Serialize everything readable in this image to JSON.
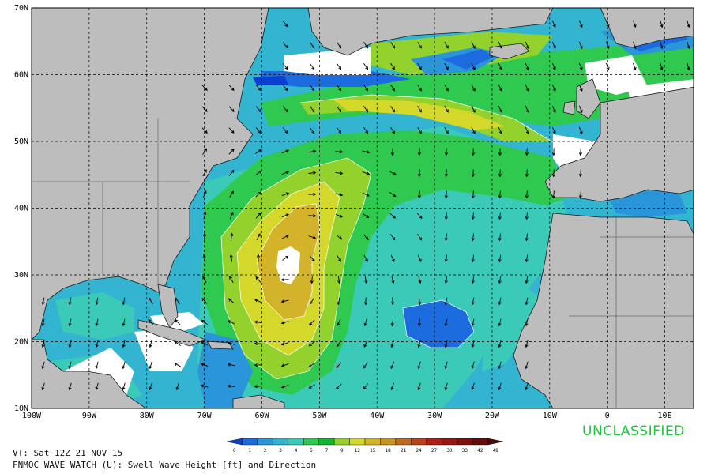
{
  "map": {
    "lat_labels": [
      "70N",
      "60N",
      "50N",
      "40N",
      "30N",
      "20N",
      "10N"
    ],
    "lon_labels": [
      "100W",
      "90W",
      "80W",
      "70W",
      "60W",
      "50W",
      "40W",
      "30W",
      "20W",
      "10W",
      "0",
      "10E"
    ],
    "extent": {
      "lon_min": -100,
      "lon_max": 15,
      "lat_min": 10,
      "lat_max": 70
    },
    "colors": {
      "land": "#bdbdbd",
      "nodata": "#ffffff",
      "grid": "#000000",
      "arrow": "#000000"
    }
  },
  "colorbar": {
    "ticks": [
      "0",
      "1",
      "2",
      "3",
      "4",
      "5",
      "7",
      "9",
      "12",
      "15",
      "18",
      "21",
      "24",
      "27",
      "30",
      "33",
      "42",
      "48"
    ],
    "colors": [
      "#0a3fd0",
      "#1c6ce0",
      "#2a95d8",
      "#33b4d0",
      "#3ccab8",
      "#2ec94e",
      "#16b52e",
      "#93d12c",
      "#d3d82b",
      "#d2b329",
      "#c89523",
      "#c06a1e",
      "#b8421a",
      "#b01e16",
      "#9a1510",
      "#801010",
      "#650c0c",
      "#4a0808"
    ]
  },
  "labels": {
    "unclassified": "UNCLASSIFIED",
    "valid_time": "VT: Sat 12Z 21 NOV 15",
    "product": "FNMOC WAVE WATCH (U): Swell Wave Height [ft] and Direction"
  }
}
